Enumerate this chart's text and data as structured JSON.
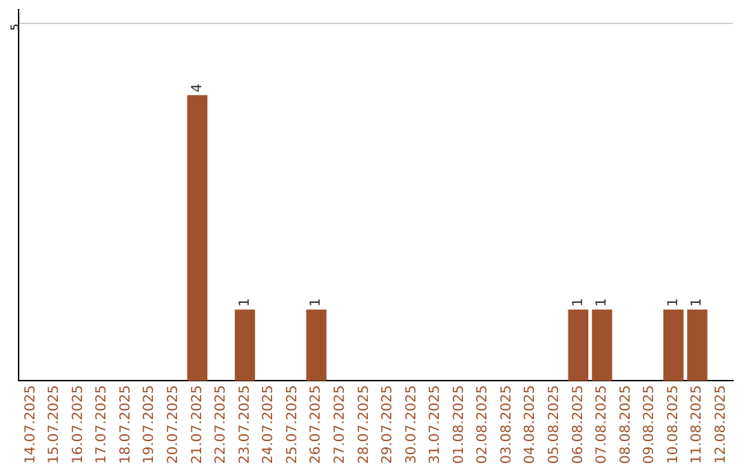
{
  "chart_data": {
    "type": "bar",
    "categories": [
      "14.07.2025",
      "15.07.2025",
      "16.07.2025",
      "17.07.2025",
      "18.07.2025",
      "19.07.2025",
      "20.07.2025",
      "21.07.2025",
      "22.07.2025",
      "23.07.2025",
      "24.07.2025",
      "25.07.2025",
      "26.07.2025",
      "27.07.2025",
      "28.07.2025",
      "29.07.2025",
      "30.07.2025",
      "31.07.2025",
      "01.08.2025",
      "02.08.2025",
      "03.08.2025",
      "04.08.2025",
      "05.08.2025",
      "06.08.2025",
      "07.08.2025",
      "08.08.2025",
      "09.08.2025",
      "10.08.2025",
      "11.08.2025",
      "12.08.2025"
    ],
    "values": [
      0,
      0,
      0,
      0,
      0,
      0,
      0,
      4,
      0,
      1,
      0,
      0,
      1,
      0,
      0,
      0,
      0,
      0,
      0,
      0,
      0,
      0,
      0,
      1,
      1,
      0,
      0,
      1,
      1,
      0
    ],
    "color": "#a0522d",
    "value_labels": [
      null,
      null,
      null,
      null,
      null,
      null,
      null,
      "4",
      null,
      "1",
      null,
      null,
      "1",
      null,
      null,
      null,
      null,
      null,
      null,
      null,
      null,
      null,
      null,
      "1",
      "1",
      null,
      null,
      "1",
      "1",
      null
    ],
    "ylim": [
      0,
      5.2
    ],
    "yticks": [
      5
    ],
    "grid": "y"
  }
}
